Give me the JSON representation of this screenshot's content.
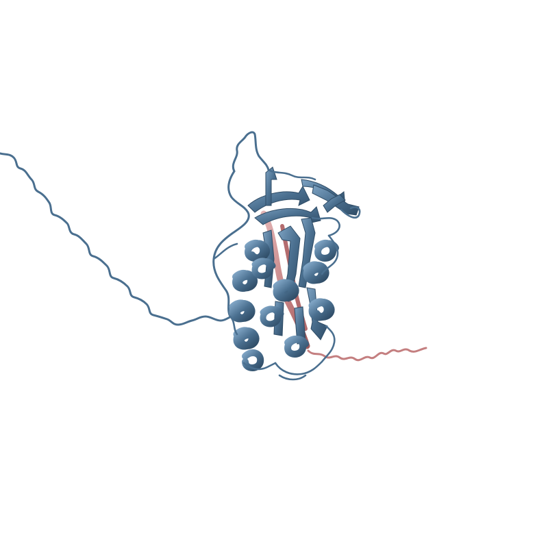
{
  "scene": {
    "background_color": "#ffffff",
    "representation": "cartoon",
    "chains": [
      {
        "id": "A",
        "color": "#4a6f8f",
        "color_dark": "#2f4c66",
        "color_light": "#7ea3c3"
      },
      {
        "id": "B",
        "color": "#c47f80",
        "color_dark": "#9e5a5c",
        "color_light": "#e3b5b6"
      }
    ]
  }
}
